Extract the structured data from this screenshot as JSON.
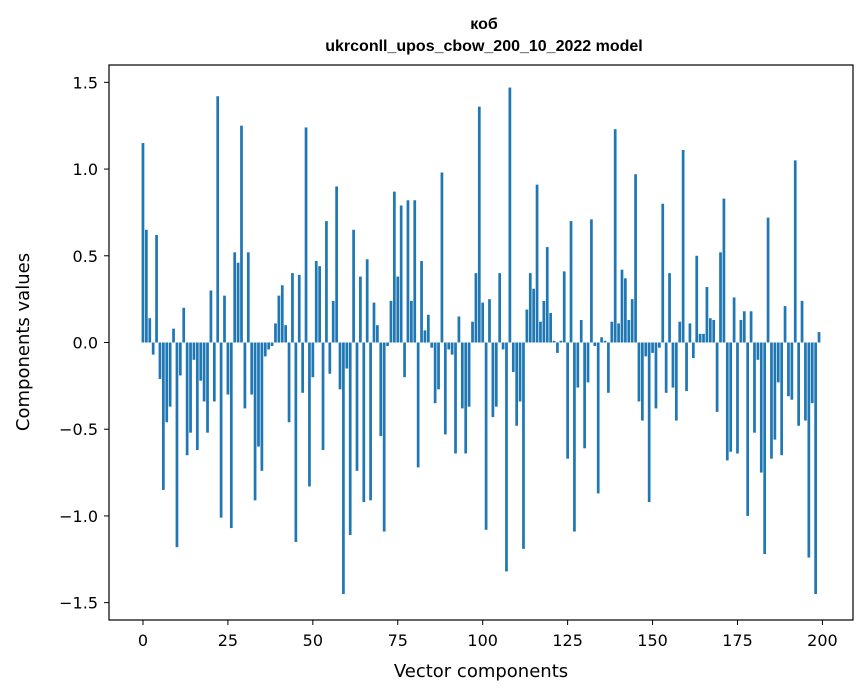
{
  "chart_data": {
    "type": "bar",
    "title": "коб",
    "subtitle": "ukrconll_upos_cbow_200_10_2022 model",
    "xlabel": "Vector components",
    "ylabel": "Components values",
    "xlim": [
      -10,
      209
    ],
    "ylim": [
      -1.6,
      1.6
    ],
    "xticks": [
      0,
      25,
      50,
      75,
      100,
      125,
      150,
      175,
      200
    ],
    "yticks": [
      -1.5,
      -1.0,
      -0.5,
      0.0,
      0.5,
      1.0,
      1.5
    ],
    "ytick_labels": [
      "−1.5",
      "−1.0",
      "−0.5",
      "0.0",
      "0.5",
      "1.0",
      "1.5"
    ],
    "grid": false,
    "bar_color": "#1f77b4",
    "x": [
      0,
      1,
      2,
      3,
      4,
      5,
      6,
      7,
      8,
      9,
      10,
      11,
      12,
      13,
      14,
      15,
      16,
      17,
      18,
      19,
      20,
      21,
      22,
      23,
      24,
      25,
      26,
      27,
      28,
      29,
      30,
      31,
      32,
      33,
      34,
      35,
      36,
      37,
      38,
      39,
      40,
      41,
      42,
      43,
      44,
      45,
      46,
      47,
      48,
      49,
      50,
      51,
      52,
      53,
      54,
      55,
      56,
      57,
      58,
      59,
      60,
      61,
      62,
      63,
      64,
      65,
      66,
      67,
      68,
      69,
      70,
      71,
      72,
      73,
      74,
      75,
      76,
      77,
      78,
      79,
      80,
      81,
      82,
      83,
      84,
      85,
      86,
      87,
      88,
      89,
      90,
      91,
      92,
      93,
      94,
      95,
      96,
      97,
      98,
      99,
      100,
      101,
      102,
      103,
      104,
      105,
      106,
      107,
      108,
      109,
      110,
      111,
      112,
      113,
      114,
      115,
      116,
      117,
      118,
      119,
      120,
      121,
      122,
      123,
      124,
      125,
      126,
      127,
      128,
      129,
      130,
      131,
      132,
      133,
      134,
      135,
      136,
      137,
      138,
      139,
      140,
      141,
      142,
      143,
      144,
      145,
      146,
      147,
      148,
      149,
      150,
      151,
      152,
      153,
      154,
      155,
      156,
      157,
      158,
      159,
      160,
      161,
      162,
      163,
      164,
      165,
      166,
      167,
      168,
      169,
      170,
      171,
      172,
      173,
      174,
      175,
      176,
      177,
      178,
      179,
      180,
      181,
      182,
      183,
      184,
      185,
      186,
      187,
      188,
      189,
      190,
      191,
      192,
      193,
      194,
      195,
      196,
      197,
      198,
      199
    ],
    "values": [
      1.15,
      0.65,
      0.14,
      -0.07,
      0.62,
      -0.21,
      -0.85,
      -0.46,
      -0.37,
      0.08,
      -1.18,
      -0.19,
      0.2,
      -0.65,
      -0.52,
      -0.1,
      -0.62,
      -0.22,
      -0.34,
      -0.52,
      0.3,
      -0.34,
      1.42,
      -1.01,
      0.27,
      -0.3,
      -1.07,
      0.52,
      0.46,
      1.25,
      -0.38,
      0.52,
      -0.3,
      -0.91,
      -0.6,
      -0.74,
      -0.08,
      -0.04,
      -0.02,
      0.11,
      0.27,
      0.33,
      0.1,
      -0.46,
      0.4,
      -1.15,
      0.39,
      -0.29,
      1.24,
      -0.83,
      -0.2,
      0.47,
      0.44,
      -0.62,
      0.7,
      -0.18,
      0.24,
      0.9,
      -0.27,
      -1.45,
      -0.15,
      -1.11,
      0.65,
      -0.74,
      0.38,
      -0.92,
      0.48,
      -0.91,
      0.23,
      0.1,
      -0.54,
      -1.09,
      -0.02,
      0.24,
      0.87,
      0.38,
      0.79,
      -0.2,
      0.82,
      0.24,
      0.82,
      -0.72,
      0.47,
      0.07,
      0.16,
      -0.03,
      -0.35,
      -0.27,
      0.98,
      -0.53,
      -0.04,
      -0.07,
      -0.64,
      0.15,
      -0.38,
      -0.64,
      -0.37,
      0.12,
      0.4,
      1.36,
      0.23,
      -1.08,
      0.25,
      -0.43,
      -0.37,
      0.4,
      -0.04,
      -1.32,
      1.47,
      -0.17,
      -0.48,
      -0.34,
      -1.19,
      0.19,
      0.4,
      0.31,
      0.91,
      0.12,
      0.24,
      0.55,
      0.17,
      0.01,
      -0.06,
      0.01,
      0.41,
      -0.67,
      0.7,
      -1.09,
      -0.26,
      0.13,
      -0.61,
      -0.23,
      0.71,
      -0.02,
      -0.87,
      0.03,
      0.01,
      -0.29,
      0.12,
      1.23,
      0.11,
      0.42,
      0.37,
      0.13,
      0.25,
      0.97,
      -0.34,
      -0.45,
      -0.08,
      -0.92,
      -0.06,
      -0.38,
      -0.03,
      0.8,
      -0.29,
      0.4,
      -0.26,
      -0.45,
      0.12,
      1.11,
      -0.28,
      0.11,
      -0.09,
      0.5,
      0.05,
      0.05,
      0.32,
      0.14,
      0.13,
      -0.4,
      0.52,
      0.83,
      -0.68,
      -0.63,
      0.26,
      -0.64,
      0.13,
      0.18,
      -1.0,
      0.18,
      -0.52,
      -0.1,
      -0.75,
      -1.22,
      0.72,
      -0.67,
      -0.56,
      -0.23,
      -0.65,
      0.21,
      -0.31,
      -0.33,
      1.05,
      -0.48,
      0.24,
      -0.45,
      -1.24,
      -0.35,
      -1.45,
      0.06
    ]
  }
}
